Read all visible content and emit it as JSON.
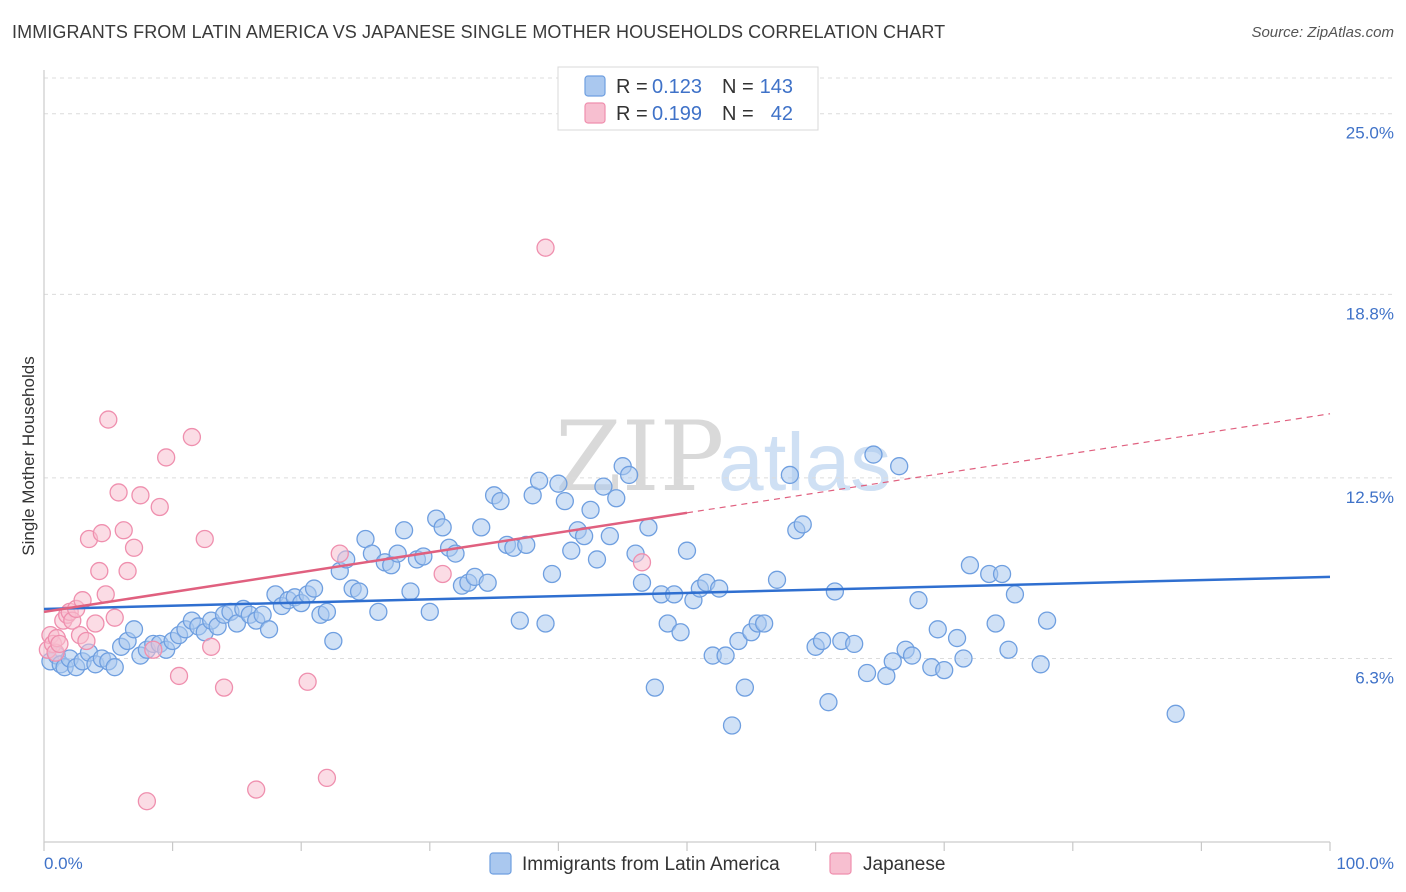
{
  "title": "IMMIGRANTS FROM LATIN AMERICA VS JAPANESE SINGLE MOTHER HOUSEHOLDS CORRELATION CHART",
  "source": "Source: ZipAtlas.com",
  "watermark": {
    "zip": "ZIP",
    "atlas": "atlas"
  },
  "legend_top": {
    "rows": [
      {
        "r_label": "R =",
        "r_value": "0.123",
        "n_label": "N =",
        "n_value": "143"
      },
      {
        "r_label": "R =",
        "r_value": "0.199",
        "n_label": "N =",
        "n_value": "42"
      }
    ]
  },
  "chart_data": {
    "type": "scatter",
    "title": "IMMIGRANTS FROM LATIN AMERICA VS JAPANESE SINGLE MOTHER HOUSEHOLDS CORRELATION CHART",
    "xlabel": "",
    "ylabel": "Single Mother Households",
    "xlim": [
      0,
      100
    ],
    "ylim": [
      0,
      26.5
    ],
    "x_tick_labels": [
      "0.0%",
      "100.0%"
    ],
    "y_ticks": [
      6.3,
      12.5,
      18.8,
      25.0
    ],
    "y_tick_labels": [
      "6.3%",
      "12.5%",
      "18.8%",
      "25.0%"
    ],
    "grid": true,
    "legend_position": "top-center",
    "colors": {
      "blue": "#6f9fe0",
      "blue_fill": "#aac8ef",
      "blue_line": "#2f6fd0",
      "pink": "#ef8fae",
      "pink_fill": "#f7bfd0",
      "pink_line": "#e0607f",
      "tick": "#3f72c8"
    },
    "series": [
      {
        "name": "Immigrants from Latin America",
        "color": "#6f9fe0",
        "trend": {
          "x0": 0,
          "y0": 8.0,
          "x1": 100,
          "y1": 9.1
        },
        "points": [
          [
            0.5,
            6.2
          ],
          [
            1.0,
            6.4
          ],
          [
            1.3,
            6.1
          ],
          [
            1.6,
            6.0
          ],
          [
            2.0,
            6.3
          ],
          [
            2.5,
            6.0
          ],
          [
            3.0,
            6.2
          ],
          [
            3.5,
            6.5
          ],
          [
            4.0,
            6.1
          ],
          [
            4.5,
            6.3
          ],
          [
            5.0,
            6.2
          ],
          [
            5.5,
            6.0
          ],
          [
            6.0,
            6.7
          ],
          [
            6.5,
            6.9
          ],
          [
            7.0,
            7.3
          ],
          [
            7.5,
            6.4
          ],
          [
            8.0,
            6.6
          ],
          [
            8.5,
            6.8
          ],
          [
            9.0,
            6.8
          ],
          [
            9.5,
            6.6
          ],
          [
            10.0,
            6.9
          ],
          [
            10.5,
            7.1
          ],
          [
            11.0,
            7.3
          ],
          [
            11.5,
            7.6
          ],
          [
            12.0,
            7.4
          ],
          [
            12.5,
            7.2
          ],
          [
            13.0,
            7.6
          ],
          [
            13.5,
            7.4
          ],
          [
            14.0,
            7.8
          ],
          [
            14.5,
            7.9
          ],
          [
            15.0,
            7.5
          ],
          [
            15.5,
            8.0
          ],
          [
            16.0,
            7.8
          ],
          [
            16.5,
            7.6
          ],
          [
            17.0,
            7.8
          ],
          [
            17.5,
            7.3
          ],
          [
            18.0,
            8.5
          ],
          [
            18.5,
            8.1
          ],
          [
            19.0,
            8.3
          ],
          [
            19.5,
            8.4
          ],
          [
            20.0,
            8.2
          ],
          [
            20.5,
            8.5
          ],
          [
            21.0,
            8.7
          ],
          [
            21.5,
            7.8
          ],
          [
            22.0,
            7.9
          ],
          [
            22.5,
            6.9
          ],
          [
            23.0,
            9.3
          ],
          [
            23.5,
            9.7
          ],
          [
            24.0,
            8.7
          ],
          [
            24.5,
            8.6
          ],
          [
            25.0,
            10.4
          ],
          [
            25.5,
            9.9
          ],
          [
            26.0,
            7.9
          ],
          [
            26.5,
            9.6
          ],
          [
            27.0,
            9.5
          ],
          [
            27.5,
            9.9
          ],
          [
            28.0,
            10.7
          ],
          [
            28.5,
            8.6
          ],
          [
            29.0,
            9.7
          ],
          [
            29.5,
            9.8
          ],
          [
            30.0,
            7.9
          ],
          [
            30.5,
            11.1
          ],
          [
            31.0,
            10.8
          ],
          [
            31.5,
            10.1
          ],
          [
            32.0,
            9.9
          ],
          [
            32.5,
            8.8
          ],
          [
            33.0,
            8.9
          ],
          [
            33.5,
            9.1
          ],
          [
            34.0,
            10.8
          ],
          [
            34.5,
            8.9
          ],
          [
            35.0,
            11.9
          ],
          [
            35.5,
            11.7
          ],
          [
            36.0,
            10.2
          ],
          [
            36.5,
            10.1
          ],
          [
            37.0,
            7.6
          ],
          [
            37.5,
            10.2
          ],
          [
            38.0,
            11.9
          ],
          [
            38.5,
            12.4
          ],
          [
            39.0,
            7.5
          ],
          [
            39.5,
            9.2
          ],
          [
            40.0,
            12.3
          ],
          [
            40.5,
            11.7
          ],
          [
            41.0,
            10.0
          ],
          [
            41.5,
            10.7
          ],
          [
            42.0,
            10.5
          ],
          [
            42.5,
            11.4
          ],
          [
            43.0,
            9.7
          ],
          [
            43.5,
            12.2
          ],
          [
            44.0,
            10.5
          ],
          [
            44.5,
            11.8
          ],
          [
            45.0,
            12.9
          ],
          [
            45.5,
            12.6
          ],
          [
            46.0,
            9.9
          ],
          [
            46.5,
            8.9
          ],
          [
            47.0,
            10.8
          ],
          [
            47.5,
            5.3
          ],
          [
            48.0,
            8.5
          ],
          [
            48.5,
            7.5
          ],
          [
            49.0,
            8.5
          ],
          [
            49.5,
            7.2
          ],
          [
            50.0,
            10.0
          ],
          [
            50.5,
            8.3
          ],
          [
            51.0,
            8.7
          ],
          [
            51.5,
            8.9
          ],
          [
            52.0,
            6.4
          ],
          [
            52.5,
            8.7
          ],
          [
            53.0,
            6.4
          ],
          [
            53.5,
            4.0
          ],
          [
            54.0,
            6.9
          ],
          [
            54.5,
            5.3
          ],
          [
            55.0,
            7.2
          ],
          [
            55.5,
            7.5
          ],
          [
            56.0,
            7.5
          ],
          [
            57.0,
            9.0
          ],
          [
            58.0,
            12.6
          ],
          [
            58.5,
            10.7
          ],
          [
            59.0,
            10.9
          ],
          [
            60.0,
            6.7
          ],
          [
            60.5,
            6.9
          ],
          [
            61.0,
            4.8
          ],
          [
            61.5,
            8.6
          ],
          [
            62.0,
            6.9
          ],
          [
            63.0,
            6.8
          ],
          [
            64.0,
            5.8
          ],
          [
            64.5,
            13.3
          ],
          [
            65.5,
            5.7
          ],
          [
            66.0,
            6.2
          ],
          [
            66.5,
            12.9
          ],
          [
            67.0,
            6.6
          ],
          [
            67.5,
            6.4
          ],
          [
            68.0,
            8.3
          ],
          [
            69.0,
            6.0
          ],
          [
            69.5,
            7.3
          ],
          [
            70.0,
            5.9
          ],
          [
            71.0,
            7.0
          ],
          [
            71.5,
            6.3
          ],
          [
            72.0,
            9.5
          ],
          [
            73.5,
            9.2
          ],
          [
            74.0,
            7.5
          ],
          [
            74.5,
            9.2
          ],
          [
            75.0,
            6.6
          ],
          [
            75.5,
            8.5
          ],
          [
            77.5,
            6.1
          ],
          [
            78.0,
            7.6
          ],
          [
            88.0,
            4.4
          ]
        ]
      },
      {
        "name": "Japanese",
        "color": "#ef8fae",
        "trend": {
          "x0": 0,
          "y0": 7.9,
          "x1": 50,
          "y1": 11.3
        },
        "trend_dashed_to": {
          "x": 100,
          "y": 14.7
        },
        "points": [
          [
            0.3,
            6.6
          ],
          [
            0.5,
            7.1
          ],
          [
            0.7,
            6.8
          ],
          [
            0.9,
            6.5
          ],
          [
            1.0,
            7.0
          ],
          [
            1.2,
            6.8
          ],
          [
            1.5,
            7.6
          ],
          [
            1.8,
            7.8
          ],
          [
            2.0,
            7.9
          ],
          [
            2.2,
            7.6
          ],
          [
            2.5,
            8.0
          ],
          [
            2.8,
            7.1
          ],
          [
            3.0,
            8.3
          ],
          [
            3.3,
            6.9
          ],
          [
            3.5,
            10.4
          ],
          [
            4.0,
            7.5
          ],
          [
            4.3,
            9.3
          ],
          [
            4.5,
            10.6
          ],
          [
            4.8,
            8.5
          ],
          [
            5.0,
            14.5
          ],
          [
            5.5,
            7.7
          ],
          [
            5.8,
            12.0
          ],
          [
            6.2,
            10.7
          ],
          [
            6.5,
            9.3
          ],
          [
            7.0,
            10.1
          ],
          [
            7.5,
            11.9
          ],
          [
            8.0,
            1.4
          ],
          [
            8.5,
            6.6
          ],
          [
            9.0,
            11.5
          ],
          [
            9.5,
            13.2
          ],
          [
            10.5,
            5.7
          ],
          [
            11.5,
            13.9
          ],
          [
            12.5,
            10.4
          ],
          [
            13.0,
            6.7
          ],
          [
            14.0,
            5.3
          ],
          [
            16.5,
            1.8
          ],
          [
            20.5,
            5.5
          ],
          [
            22.0,
            2.2
          ],
          [
            23.0,
            9.9
          ],
          [
            31.0,
            9.2
          ],
          [
            39.0,
            20.4
          ],
          [
            46.5,
            9.6
          ]
        ]
      }
    ]
  },
  "bottom_legend": [
    {
      "label": "Immigrants from Latin America"
    },
    {
      "label": "Japanese"
    }
  ]
}
